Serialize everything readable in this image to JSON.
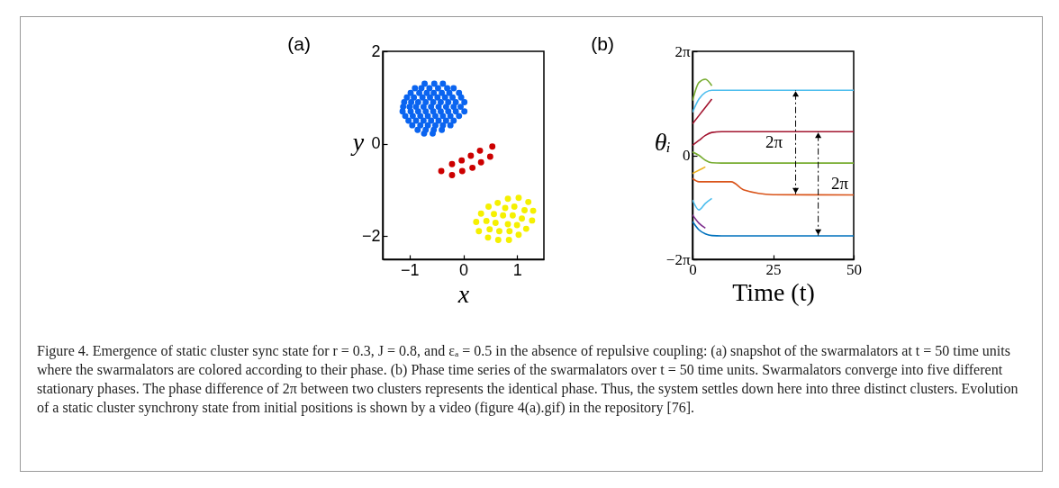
{
  "chart_data": [
    {
      "type": "scatter",
      "title": "(a)",
      "xlabel": "x",
      "ylabel": "y",
      "xlim": [
        -1.5,
        1.5
      ],
      "ylim": [
        -2.5,
        2
      ],
      "xticks": [
        -1,
        0,
        1
      ],
      "yticks": [
        -2,
        0,
        2
      ],
      "marker": "circle",
      "legend": false,
      "series": [
        {
          "color": "#0a64f0",
          "x": [
            -0.72,
            -0.54,
            -0.38,
            -0.9,
            -0.78,
            -0.63,
            -0.47,
            -0.3,
            -0.18,
            -0.98,
            -0.82,
            -0.68,
            -0.55,
            -0.4,
            -0.26,
            -0.08,
            -1.05,
            -0.92,
            -0.76,
            -0.62,
            -0.48,
            -0.34,
            -0.2,
            -0.04,
            -1.1,
            -0.97,
            -0.84,
            -0.7,
            -0.56,
            -0.42,
            -0.28,
            -0.14,
            0.02,
            -1.12,
            -1.0,
            -0.88,
            -0.74,
            -0.6,
            -0.46,
            -0.32,
            -0.18,
            -0.05,
            -1.13,
            -0.98,
            -0.84,
            -0.7,
            -0.56,
            -0.42,
            -0.28,
            -0.14,
            0.02,
            -1.08,
            -0.94,
            -0.8,
            -0.66,
            -0.52,
            -0.38,
            -0.24,
            -0.08,
            -1.02,
            -0.88,
            -0.74,
            -0.6,
            -0.46,
            -0.32,
            -0.18,
            -0.95,
            -0.8,
            -0.66,
            -0.52,
            -0.38,
            -0.24,
            -0.85,
            -0.7,
            -0.55,
            -0.4,
            -0.73,
            -0.57
          ],
          "values": [
            1.3,
            1.3,
            1.3,
            1.2,
            1.2,
            1.2,
            1.2,
            1.2,
            1.2,
            1.1,
            1.1,
            1.1,
            1.1,
            1.1,
            1.1,
            1.1,
            1.0,
            1.0,
            1.0,
            1.0,
            1.0,
            1.0,
            1.0,
            1.0,
            0.9,
            0.9,
            0.9,
            0.9,
            0.9,
            0.9,
            0.9,
            0.9,
            0.9,
            0.8,
            0.8,
            0.8,
            0.8,
            0.8,
            0.8,
            0.8,
            0.8,
            0.8,
            0.7,
            0.7,
            0.7,
            0.7,
            0.7,
            0.7,
            0.7,
            0.7,
            0.7,
            0.6,
            0.6,
            0.6,
            0.6,
            0.6,
            0.6,
            0.6,
            0.6,
            0.5,
            0.5,
            0.5,
            0.5,
            0.5,
            0.5,
            0.5,
            0.4,
            0.4,
            0.4,
            0.4,
            0.4,
            0.4,
            0.3,
            0.3,
            0.3,
            0.3,
            0.22,
            0.22
          ]
        },
        {
          "color": "#cc0000",
          "x": [
            -0.41,
            -0.21,
            -0.21,
            -0.03,
            -0.02,
            0.14,
            0.17,
            0.31,
            0.33,
            0.54,
            0.5
          ],
          "values": [
            -0.59,
            -0.44,
            -0.68,
            -0.36,
            -0.59,
            -0.26,
            -0.52,
            -0.15,
            -0.4,
            -0.06,
            -0.28
          ]
        },
        {
          "color": "#f5f000",
          "x": [
            0.83,
            1.03,
            1.21,
            0.47,
            0.64,
            0.78,
            0.95,
            1.14,
            1.3,
            0.33,
            0.57,
            0.74,
            0.92,
            1.09,
            1.28,
            0.24,
            0.43,
            0.6,
            0.83,
            1.0,
            1.17,
            0.29,
            0.49,
            0.67,
            0.86,
            1.03,
            0.46,
            0.65,
            0.85
          ],
          "values": [
            -1.19,
            -1.17,
            -1.26,
            -1.36,
            -1.28,
            -1.39,
            -1.36,
            -1.44,
            -1.45,
            -1.51,
            -1.52,
            -1.55,
            -1.55,
            -1.62,
            -1.66,
            -1.69,
            -1.67,
            -1.71,
            -1.74,
            -1.76,
            -1.84,
            -1.89,
            -1.85,
            -1.89,
            -1.89,
            -1.97,
            -2.03,
            -2.08,
            -2.08
          ]
        }
      ],
      "annotations": [
        "Figure 4. Emergence of static cluster sync state for r = 0.3, J = 0.8, and εₐ = 0.5 in the absence of repulsive coupling: (a) snapshot of the swarmalators at t = 50 time units where the swarmalators are colored according to their phase. (b) Phase time series of the swarmalators over t = 50 time units. Swarmalators converge into five different stationary phases. The phase difference of 2π between two clusters represents the identical phase. Thus, the system settles down here into three distinct clusters. Evolution of a static cluster synchrony state from initial positions is shown by a video (figure 4(a).gif) in the repository [76]."
      ]
    },
    {
      "type": "line",
      "title": "(b)",
      "xlabel": "Time (t)",
      "ylabel": "θᵢ",
      "xlim": [
        0,
        50
      ],
      "ylim": [
        -6.283,
        6.283
      ],
      "xticks": [
        0,
        25,
        50
      ],
      "yticks": [
        {
          "value": -6.283,
          "label": "−2π"
        },
        0,
        {
          "value": 6.283,
          "label": "2π"
        }
      ],
      "legend": false,
      "x": [
        0,
        2,
        4,
        6,
        9,
        12,
        16,
        25,
        50
      ],
      "series": [
        {
          "color": "#77ac30",
          "values": [
            3.3,
            4.4,
            4.6,
            4.2,
            null,
            null,
            null,
            null,
            null
          ]
        },
        {
          "color": "#a2142f",
          "values": [
            1.9,
            2.4,
            2.9,
            3.4,
            null,
            null,
            null,
            null,
            null
          ]
        },
        {
          "color": "#edb120",
          "values": [
            -1.1,
            -0.9,
            -0.7,
            null,
            null,
            null,
            null,
            null,
            null
          ]
        },
        {
          "color": "#4dbeee",
          "values": [
            -2.7,
            -3.3,
            -2.9,
            -2.6,
            null,
            null,
            null,
            null,
            null
          ]
        },
        {
          "color": "#7e2f8e",
          "values": [
            -3.6,
            -4.1,
            -4.4,
            null,
            null,
            null,
            null,
            null,
            null
          ]
        },
        {
          "color": "#4dbeee",
          "values": [
            2.6,
            3.4,
            3.8,
            3.93,
            3.93,
            3.93,
            3.93,
            3.93,
            3.93
          ]
        },
        {
          "color": "#a2142f",
          "values": [
            0.6,
            0.9,
            1.2,
            1.38,
            1.43,
            1.43,
            1.43,
            1.43,
            1.43
          ]
        },
        {
          "color": "#77ac30",
          "values": [
            0.2,
            0.0,
            -0.3,
            -0.45,
            -0.47,
            -0.47,
            -0.47,
            -0.47,
            -0.47
          ]
        },
        {
          "color": "#d95319",
          "values": [
            -1.4,
            -1.6,
            -1.6,
            -1.6,
            -1.6,
            -1.6,
            -2.1,
            -2.38,
            -2.39
          ]
        },
        {
          "color": "#0072bd",
          "values": [
            -4.0,
            -4.5,
            -4.75,
            -4.85,
            -4.87,
            -4.87,
            -4.87,
            -4.87,
            -4.87
          ]
        }
      ],
      "annotations": [
        {
          "text": "2π",
          "x": 32,
          "y": 3.93
        },
        {
          "text": "2π",
          "x": 39,
          "y": 1.43
        }
      ]
    }
  ]
}
